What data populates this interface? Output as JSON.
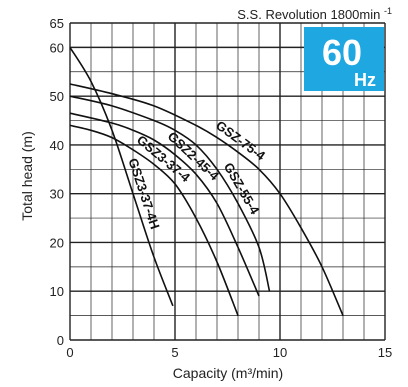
{
  "header": {
    "text": "S.S. Revolution 1800min",
    "superscript": "-1"
  },
  "badge": {
    "value": "60",
    "unit": "Hz",
    "color": "#1ea7e1"
  },
  "chart_data": {
    "type": "line",
    "xlabel": "Capacity (m³/min)",
    "ylabel": "Total head (m)",
    "xlim": [
      0,
      15
    ],
    "ylim": [
      0,
      65
    ],
    "xticks": [
      0,
      5,
      10,
      15
    ],
    "yticks": [
      0,
      10,
      20,
      30,
      40,
      50,
      60,
      65
    ],
    "grid": true,
    "series": [
      {
        "name": "GSZ3-37-4H",
        "x": [
          0,
          1,
          2,
          3,
          4,
          4.9
        ],
        "y": [
          60,
          53,
          43,
          30,
          17,
          7
        ]
      },
      {
        "name": "GSZ3-37-4",
        "x": [
          0,
          1,
          2,
          3,
          4,
          5,
          6,
          7,
          8
        ],
        "y": [
          44,
          43,
          41.5,
          39,
          36,
          32,
          25,
          16,
          5
        ]
      },
      {
        "name": "GSZ2-45-4",
        "x": [
          0,
          2,
          3,
          4,
          5,
          6,
          7,
          8,
          9
        ],
        "y": [
          46.5,
          44.5,
          43,
          41,
          38,
          34,
          28,
          19,
          9
        ]
      },
      {
        "name": "GSZ-55-4",
        "x": [
          0,
          2,
          4,
          5,
          6,
          7,
          8,
          9,
          9.5
        ],
        "y": [
          50,
          48,
          45,
          43,
          40,
          35,
          28,
          19,
          10
        ]
      },
      {
        "name": "GSZ-75-4",
        "x": [
          0,
          2,
          4,
          6,
          7,
          8,
          9,
          10,
          11,
          12,
          13
        ],
        "y": [
          52.5,
          50.5,
          48,
          44,
          41.5,
          38.5,
          35,
          30,
          23,
          15,
          5
        ]
      }
    ]
  }
}
